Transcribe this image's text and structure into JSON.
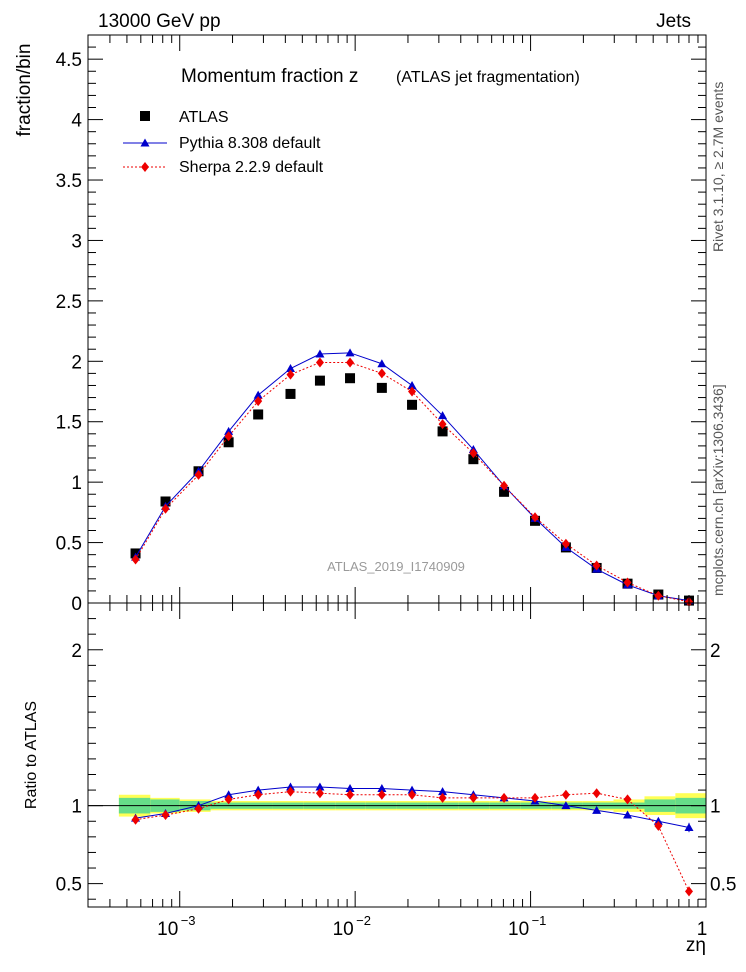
{
  "header": {
    "left": "13000 GeV pp",
    "right": "Jets",
    "side_top": "Rivet 3.1.10, ≥ 2.7M events",
    "side_bottom": "mcplots.cern.ch [arXiv:1306.3436]"
  },
  "colors": {
    "data": "#000000",
    "pythia": "#0000cc",
    "sherpa": "#ee0000",
    "band_inner": "#66dd88",
    "band_outer": "#ffff55"
  },
  "chart_data": [
    {
      "type": "line",
      "title": "Momentum fraction z",
      "subtitle": "(ATLAS jet fragmentation)",
      "watermark": "ATLAS_2019_I1740909",
      "xlabel": "zη",
      "ylabel": "fraction/bin",
      "xscale": "log",
      "xlim": [
        0.0003,
        1.0
      ],
      "ylim": [
        0,
        4.7
      ],
      "yticks": [
        0,
        0.5,
        1,
        1.5,
        2,
        2.5,
        3,
        3.5,
        4,
        4.5
      ],
      "ytick_labels": [
        "0",
        "0.5",
        "1",
        "1.5",
        "2",
        "2.5",
        "3",
        "3.5",
        "4",
        "4.5"
      ],
      "legend_position": "top-left",
      "x": [
        0.00056,
        0.00083,
        0.00128,
        0.0019,
        0.0028,
        0.00428,
        0.0063,
        0.00935,
        0.0142,
        0.0211,
        0.0315,
        0.0472,
        0.0706,
        0.106,
        0.159,
        0.238,
        0.357,
        0.535,
        0.8
      ],
      "series": [
        {
          "name": "ATLAS",
          "marker": "square",
          "values": [
            0.41,
            0.84,
            1.09,
            1.33,
            1.56,
            1.73,
            1.84,
            1.86,
            1.78,
            1.64,
            1.42,
            1.19,
            0.92,
            0.68,
            0.46,
            0.29,
            0.16,
            0.07,
            0.02
          ]
        },
        {
          "name": "Pythia 8.308 default",
          "marker": "triangle",
          "values": [
            0.38,
            0.8,
            1.09,
            1.42,
            1.72,
            1.94,
            2.06,
            2.07,
            1.98,
            1.8,
            1.55,
            1.27,
            0.97,
            0.7,
            0.46,
            0.28,
            0.15,
            0.06,
            0.02
          ]
        },
        {
          "name": "Sherpa 2.2.9 default",
          "marker": "diamond",
          "values": [
            0.36,
            0.78,
            1.06,
            1.38,
            1.67,
            1.89,
            1.99,
            1.99,
            1.9,
            1.75,
            1.48,
            1.24,
            0.97,
            0.71,
            0.49,
            0.31,
            0.17,
            0.06,
            0.01
          ]
        }
      ]
    },
    {
      "type": "line",
      "ylabel": "Ratio to ATLAS",
      "xlabel": "zη",
      "xscale": "log",
      "xlim": [
        0.0003,
        1.0
      ],
      "ylim": [
        0.35,
        2.3
      ],
      "yticks": [
        0.5,
        1,
        2
      ],
      "ytick_labels": [
        "0.5",
        "1",
        "2"
      ],
      "xtick_labels": [
        "10",
        "10",
        "10",
        "1"
      ],
      "xtick_exponents": [
        "−3",
        "−2",
        "−1",
        ""
      ],
      "x": [
        0.00056,
        0.00083,
        0.00128,
        0.0019,
        0.0028,
        0.00428,
        0.0063,
        0.00935,
        0.0142,
        0.0211,
        0.0315,
        0.0472,
        0.0706,
        0.106,
        0.159,
        0.238,
        0.357,
        0.535,
        0.8
      ],
      "bands": {
        "edges": [
          0.00045,
          0.00068,
          0.001,
          0.0015,
          0.00225,
          0.0034,
          0.0051,
          0.0077,
          0.0115,
          0.0173,
          0.026,
          0.039,
          0.0585,
          0.088,
          0.132,
          0.198,
          0.297,
          0.446,
          0.669,
          1.0
        ],
        "inner_half_width": [
          0.05,
          0.04,
          0.03,
          0.02,
          0.02,
          0.02,
          0.02,
          0.02,
          0.02,
          0.02,
          0.02,
          0.02,
          0.02,
          0.02,
          0.02,
          0.02,
          0.02,
          0.04,
          0.05
        ],
        "outer_half_width": [
          0.07,
          0.05,
          0.04,
          0.03,
          0.03,
          0.03,
          0.03,
          0.03,
          0.03,
          0.03,
          0.03,
          0.03,
          0.03,
          0.03,
          0.03,
          0.03,
          0.04,
          0.06,
          0.08
        ]
      },
      "series": [
        {
          "name": "Pythia 8.308 default",
          "values": [
            0.92,
            0.95,
            1.0,
            1.07,
            1.1,
            1.12,
            1.12,
            1.11,
            1.11,
            1.1,
            1.09,
            1.07,
            1.05,
            1.03,
            1.0,
            0.97,
            0.94,
            0.9,
            0.86
          ],
          "errors": [
            0.01,
            0.01,
            0.01,
            0.01,
            0.01,
            0.01,
            0.01,
            0.01,
            0.01,
            0.01,
            0.01,
            0.01,
            0.01,
            0.01,
            0.01,
            0.01,
            0.01,
            0.02,
            0.03
          ]
        },
        {
          "name": "Sherpa 2.2.9 default",
          "values": [
            0.91,
            0.94,
            0.98,
            1.04,
            1.07,
            1.09,
            1.08,
            1.07,
            1.07,
            1.07,
            1.05,
            1.05,
            1.05,
            1.05,
            1.07,
            1.08,
            1.04,
            0.87,
            0.45
          ],
          "errors": [
            0.015,
            0.01,
            0.01,
            0.01,
            0.01,
            0.01,
            0.01,
            0.01,
            0.01,
            0.01,
            0.01,
            0.01,
            0.01,
            0.01,
            0.01,
            0.01,
            0.015,
            0.02,
            0.03
          ]
        }
      ]
    }
  ]
}
